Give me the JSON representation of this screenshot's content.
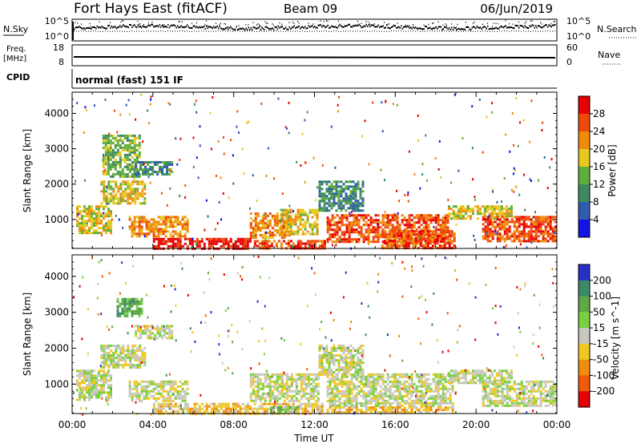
{
  "header": {
    "station": "Fort Hays East (fitACF)",
    "beam": "Beam 09",
    "date": "06/Jun/2019"
  },
  "top_panels": {
    "nsky_label": "N.Sky",
    "nsky_ticks": [
      "10^5",
      "10^0"
    ],
    "nsearch_label": "N.Search",
    "nsearch_ticks": [
      "10^5",
      "10^0"
    ],
    "freq_label": "Freq.",
    "freq_unit": "[MHz]",
    "freq_ticks": [
      "18",
      "8"
    ],
    "nave_label": "Nave",
    "nave_ticks": [
      "60",
      "0"
    ],
    "cpid_label": "CPID",
    "cpid_text": "normal (fast) 151 IF"
  },
  "chart_data": [
    {
      "type": "heatmap",
      "ylabel": "Slant Range [km]",
      "yticks": [
        "1000",
        "2000",
        "3000",
        "4000"
      ],
      "ylim": [
        180,
        4600
      ],
      "xlim": [
        0,
        24
      ],
      "colorbar_label": "Power [dB]",
      "colorbar_ticks": [
        "4",
        "8",
        "12",
        "16",
        "20",
        "24",
        "28"
      ],
      "colors": [
        "#1414e6",
        "#2f5cb0",
        "#3c8a60",
        "#5fae3c",
        "#e6c81e",
        "#f08c0a",
        "#f04a0a",
        "#e60000"
      ],
      "bands": [
        {
          "t0": 0.2,
          "t1": 1.9,
          "r0": 600,
          "r1": 1400,
          "level": 4
        },
        {
          "t0": 1.4,
          "t1": 3.6,
          "r0": 1450,
          "r1": 2100,
          "level": 4
        },
        {
          "t0": 1.5,
          "t1": 3.4,
          "r0": 2200,
          "r1": 3400,
          "level": 3
        },
        {
          "t0": 3.1,
          "t1": 4.9,
          "r0": 2300,
          "r1": 2650,
          "level": 2
        },
        {
          "t0": 2.8,
          "t1": 5.7,
          "r0": 500,
          "r1": 1100,
          "level": 5
        },
        {
          "t0": 4.0,
          "t1": 8.8,
          "r0": 200,
          "r1": 480,
          "level": 7
        },
        {
          "t0": 8.8,
          "t1": 10.8,
          "r0": 500,
          "r1": 1200,
          "level": 5
        },
        {
          "t0": 10.3,
          "t1": 12.2,
          "r0": 600,
          "r1": 1300,
          "level": 4
        },
        {
          "t0": 9.0,
          "t1": 12.5,
          "r0": 200,
          "r1": 420,
          "level": 6
        },
        {
          "t0": 12.2,
          "t1": 14.4,
          "r0": 1250,
          "r1": 2100,
          "level": 2
        },
        {
          "t0": 12.6,
          "t1": 18.6,
          "r0": 380,
          "r1": 1150,
          "level": 6
        },
        {
          "t0": 15.3,
          "t1": 18.9,
          "r0": 200,
          "r1": 700,
          "level": 6
        },
        {
          "t0": 18.6,
          "t1": 21.8,
          "r0": 1000,
          "r1": 1400,
          "level": 4
        },
        {
          "t0": 20.3,
          "t1": 23.9,
          "r0": 400,
          "r1": 1100,
          "level": 6
        }
      ]
    },
    {
      "type": "heatmap",
      "ylabel": "Slant Range [km]",
      "yticks": [
        "1000",
        "2000",
        "3000",
        "4000"
      ],
      "ylim": [
        180,
        4600
      ],
      "xlabel": "Time UT",
      "xticks": [
        "00:00",
        "04:00",
        "08:00",
        "12:00",
        "16:00",
        "20:00",
        "00:00"
      ],
      "xlim": [
        0,
        24
      ],
      "colorbar_label": "Velocity [m s^-1]",
      "colorbar_ticks": [
        "200",
        "100",
        "50",
        "15",
        "-15",
        "-50",
        "-100",
        "-200"
      ],
      "colors": [
        "#2830c8",
        "#3a8a68",
        "#5ea845",
        "#78d040",
        "#c8c8c0",
        "#f0c820",
        "#f08c10",
        "#f05a0a",
        "#e60000"
      ],
      "bands": [
        {
          "t0": 0.2,
          "t1": 1.9,
          "r0": 550,
          "r1": 1400,
          "level": 4
        },
        {
          "t0": 1.4,
          "t1": 3.6,
          "r0": 1450,
          "r1": 2100,
          "level": 4
        },
        {
          "t0": 2.2,
          "t1": 3.4,
          "r0": 2900,
          "r1": 3400,
          "level": 2
        },
        {
          "t0": 3.1,
          "t1": 4.9,
          "r0": 2300,
          "r1": 2650,
          "level": 4
        },
        {
          "t0": 2.8,
          "t1": 5.7,
          "r0": 500,
          "r1": 1100,
          "level": 4
        },
        {
          "t0": 4.0,
          "t1": 12.4,
          "r0": 200,
          "r1": 480,
          "level": 5
        },
        {
          "t0": 9.8,
          "t1": 11.2,
          "r0": 220,
          "r1": 380,
          "level": 3
        },
        {
          "t0": 8.8,
          "t1": 12.2,
          "r0": 500,
          "r1": 1300,
          "level": 4
        },
        {
          "t0": 12.2,
          "t1": 14.4,
          "r0": 1250,
          "r1": 2100,
          "level": 4
        },
        {
          "t0": 12.6,
          "t1": 18.9,
          "r0": 380,
          "r1": 1300,
          "level": 4
        },
        {
          "t0": 12.6,
          "t1": 18.9,
          "r0": 200,
          "r1": 380,
          "level": 5
        },
        {
          "t0": 18.6,
          "t1": 21.8,
          "r0": 1000,
          "r1": 1400,
          "level": 4
        },
        {
          "t0": 20.3,
          "t1": 23.9,
          "r0": 400,
          "r1": 1100,
          "level": 4
        }
      ]
    }
  ]
}
